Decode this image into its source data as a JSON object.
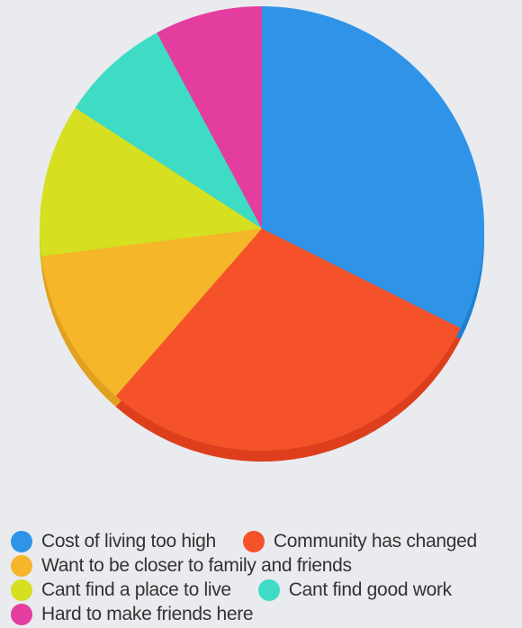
{
  "chart_data": {
    "type": "pie",
    "title": "",
    "categories": [
      "Cost of living too high",
      "Community has changed",
      "Want to be closer to family and friends",
      "Cant find a place to live",
      "Cant find good work",
      "Hard to make friends here"
    ],
    "values": [
      33.5,
      30.0,
      12.0,
      11.5,
      8.3,
      8.1
    ],
    "colors": [
      "#2f94e8",
      "#f5522a",
      "#f6b62a",
      "#d7df21",
      "#3edcc4",
      "#e33d9f"
    ],
    "shadow_colors": [
      "#1f7fd1",
      "#dd3f1c",
      "#e0a020",
      "#bfc816",
      "#2cc3ad",
      "#c92f8a"
    ],
    "legend_position": "bottom"
  }
}
